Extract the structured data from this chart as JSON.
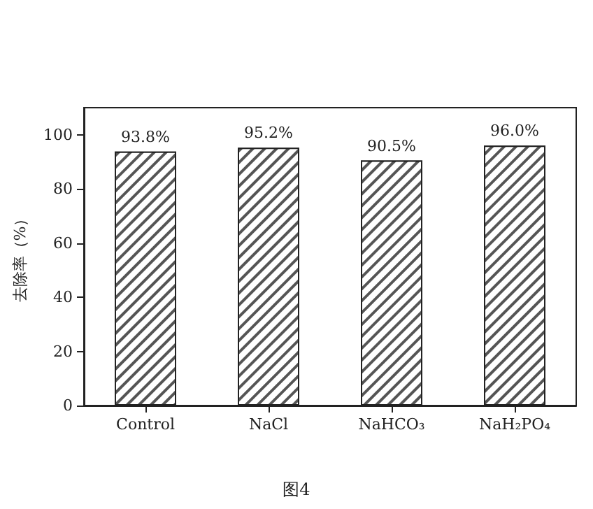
{
  "chart_data": {
    "type": "bar",
    "ylabel": "去除率（%）",
    "annotations": [
      "图4"
    ],
    "categories": [
      "Control",
      "NaCl",
      "NaHCO₃",
      "NaH₂PO₄"
    ],
    "series": [
      {
        "color": "#555555",
        "values": [
          93.8,
          95.2,
          90.5,
          96.0
        ],
        "value_labels": [
          "93.8%",
          "95.2%",
          "90.5%",
          "96.0%"
        ]
      }
    ],
    "ylim": [
      0,
      110
    ],
    "yticks": [
      0,
      20,
      40,
      60,
      80,
      100
    ],
    "grid": false
  }
}
